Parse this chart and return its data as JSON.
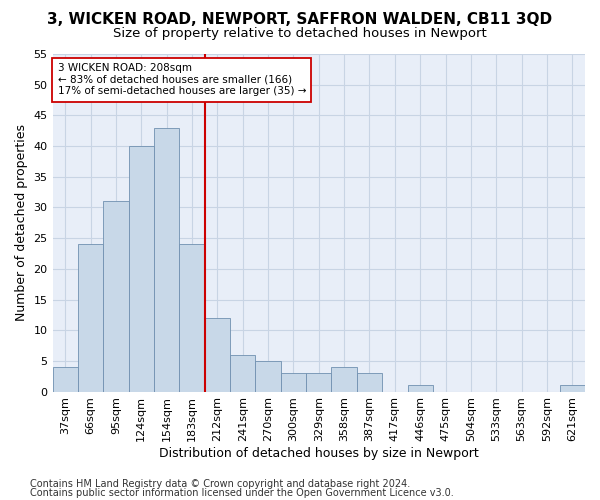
{
  "title1": "3, WICKEN ROAD, NEWPORT, SAFFRON WALDEN, CB11 3QD",
  "title2": "Size of property relative to detached houses in Newport",
  "xlabel": "Distribution of detached houses by size in Newport",
  "ylabel": "Number of detached properties",
  "categories": [
    "37sqm",
    "66sqm",
    "95sqm",
    "124sqm",
    "154sqm",
    "183sqm",
    "212sqm",
    "241sqm",
    "270sqm",
    "300sqm",
    "329sqm",
    "358sqm",
    "387sqm",
    "417sqm",
    "446sqm",
    "475sqm",
    "504sqm",
    "533sqm",
    "563sqm",
    "592sqm",
    "621sqm"
  ],
  "values": [
    4,
    24,
    31,
    40,
    43,
    24,
    12,
    6,
    5,
    3,
    3,
    4,
    3,
    0,
    1,
    0,
    0,
    0,
    0,
    0,
    1
  ],
  "bar_color": "#c8d8e8",
  "bar_edge_color": "#7090b0",
  "vline_color": "#cc0000",
  "annotation_line1": "3 WICKEN ROAD: 208sqm",
  "annotation_line2": "← 83% of detached houses are smaller (166)",
  "annotation_line3": "17% of semi-detached houses are larger (35) →",
  "annotation_box_color": "#ffffff",
  "annotation_box_edge": "#cc0000",
  "ylim": [
    0,
    55
  ],
  "yticks": [
    0,
    5,
    10,
    15,
    20,
    25,
    30,
    35,
    40,
    45,
    50,
    55
  ],
  "grid_color": "#c8d4e4",
  "background_color": "#e8eef8",
  "footer1": "Contains HM Land Registry data © Crown copyright and database right 2024.",
  "footer2": "Contains public sector information licensed under the Open Government Licence v3.0.",
  "title1_fontsize": 11,
  "title2_fontsize": 9.5,
  "xlabel_fontsize": 9,
  "ylabel_fontsize": 9,
  "tick_fontsize": 8,
  "footer_fontsize": 7
}
